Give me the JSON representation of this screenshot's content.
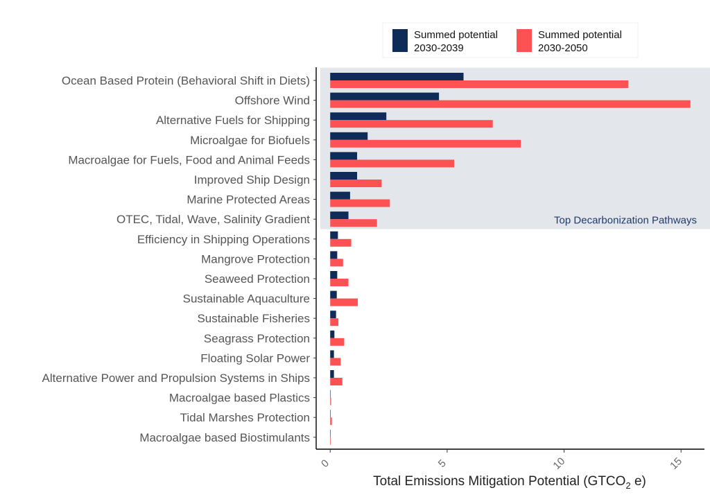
{
  "chart_data": {
    "type": "bar",
    "orientation": "horizontal",
    "title": "",
    "xlabel_main": "Total Emissions Mitigation Potential (GTCO",
    "xlabel_sub": "2",
    "xlabel_tail": " e)",
    "ylabel": "",
    "xlim": [
      -0.6,
      16.0
    ],
    "xticks": [
      0,
      5,
      10,
      15
    ],
    "grid": false,
    "legend_position": "top-right",
    "categories": [
      "Ocean Based Protein (Behavioral Shift in Diets)",
      "Offshore Wind",
      "Alternative Fuels for Shipping",
      "Microalgae for Biofuels",
      "Macroalgae for Fuels, Food and Animal Feeds",
      "Improved Ship Design",
      "Marine Protected Areas",
      "OTEC, Tidal, Wave, Salinity Gradient",
      "Efficiency in Shipping Operations",
      "Mangrove Protection",
      "Seaweed Protection",
      "Sustainable Aquaculture",
      "Sustainable Fisheries",
      "Seagrass Protection",
      "Floating Solar Power",
      "Alternative Power and Propulsion Systems in Ships",
      "Macroalgae based Plastics",
      "Tidal Marshes Protection",
      "Macroalgae based Biostimulants"
    ],
    "series": [
      {
        "name": "Summed potential 2030-2039",
        "legend_lines": [
          "Summed potential",
          "2030-2039"
        ],
        "color": "#0f2b57",
        "values": [
          5.7,
          4.65,
          2.4,
          1.6,
          1.15,
          1.15,
          0.85,
          0.78,
          0.33,
          0.3,
          0.3,
          0.28,
          0.25,
          0.18,
          0.16,
          0.16,
          0.01,
          0.01,
          0.01
        ]
      },
      {
        "name": "Summed potential 2030-2050",
        "legend_lines": [
          "Summed potential",
          "2030-2050"
        ],
        "color": "#fc5253",
        "values": [
          12.75,
          15.4,
          6.95,
          8.15,
          5.3,
          2.2,
          2.55,
          2.0,
          0.9,
          0.55,
          0.78,
          1.18,
          0.35,
          0.6,
          0.45,
          0.52,
          0.04,
          0.07,
          0.02
        ]
      }
    ],
    "highlight_region": {
      "label": "Top Decarbonization Pathways",
      "first_category_index": 0,
      "last_category_index": 7,
      "fill": "#e3e6ea",
      "text_color": "#1f3a6b"
    }
  }
}
